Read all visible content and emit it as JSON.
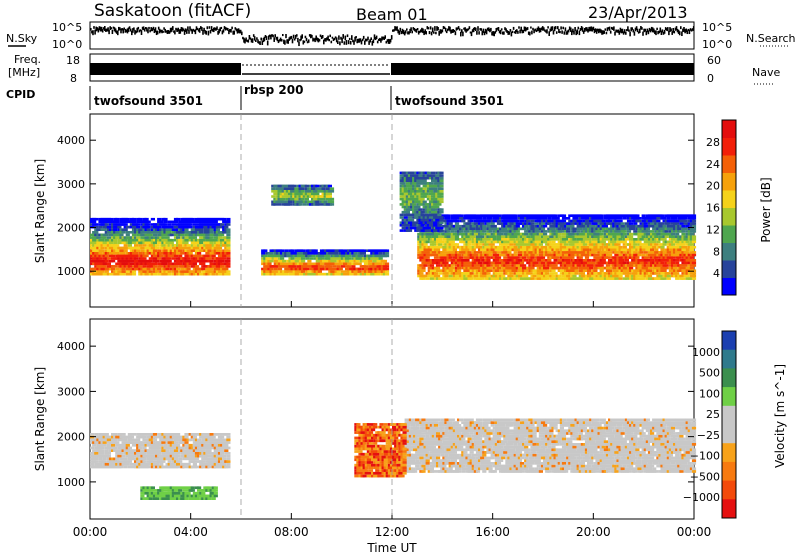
{
  "header": {
    "title": "Saskatoon (fitACF)",
    "beam": "Beam 01",
    "date": "23/Apr/2013"
  },
  "top_panels": {
    "nsky_label": "N.Sky",
    "nsearch_label": "N.Search",
    "nsky_ticks": [
      "10^5",
      "10^0"
    ],
    "nsearch_ticks": [
      "10^5",
      "10^0"
    ],
    "freq_label": "Freq.",
    "freq_unit": "[MHz]",
    "freq_ticks": [
      "18",
      "8"
    ],
    "nave_label": "Nave",
    "nave_ticks": [
      "60",
      "0"
    ],
    "cpid_label": "CPID",
    "cpid_segments": [
      {
        "name": "twofsound 3501",
        "start_h": 0,
        "end_h": 6.0
      },
      {
        "name": "rbsp 200",
        "start_h": 6.0,
        "end_h": 12.0
      },
      {
        "name": "twofsound 3501",
        "start_h": 12.0,
        "end_h": 24.0
      }
    ]
  },
  "chart_data": [
    {
      "type": "heatmap",
      "title": "",
      "xlabel": "Time UT",
      "ylabel": "Slant Range [km]",
      "x_tick_labels": [
        "00:00",
        "04:00",
        "08:00",
        "12:00",
        "16:00",
        "20:00",
        "00:00"
      ],
      "x_ticks_hours": [
        0,
        4,
        8,
        12,
        16,
        20,
        24
      ],
      "xlim_hours": [
        0,
        24
      ],
      "y_tick_labels": [
        "1000",
        "2000",
        "3000",
        "4000"
      ],
      "y_ticks": [
        1000,
        2000,
        3000,
        4000
      ],
      "ylim": [
        180,
        4600
      ],
      "colorbar": {
        "label": "Power [dB]",
        "ticks": [
          "4",
          "8",
          "12",
          "16",
          "20",
          "24",
          "28"
        ],
        "range": [
          0,
          30
        ],
        "colors": [
          "#0000ff",
          "#27439b",
          "#3d7f7f",
          "#4fa64f",
          "#a8c82e",
          "#f5d21a",
          "#f6a10b",
          "#f46007",
          "#f21f09",
          "#e40d0d"
        ]
      },
      "echo_bands": [
        {
          "start_h": 0.0,
          "end_h": 5.5,
          "range_low": 900,
          "range_high": 2200,
          "peak_range": 1200,
          "peak_power": 28
        },
        {
          "start_h": 6.8,
          "end_h": 11.8,
          "range_low": 900,
          "range_high": 1500,
          "peak_range": 1050,
          "peak_power": 26
        },
        {
          "start_h": 13.0,
          "end_h": 24.0,
          "range_low": 800,
          "range_high": 2300,
          "peak_range": 1200,
          "peak_power": 26
        },
        {
          "start_h": 7.2,
          "end_h": 9.6,
          "range_low": 2500,
          "range_high": 3000,
          "peak_range": 2700,
          "peak_power": 14
        },
        {
          "start_h": 12.3,
          "end_h": 14.0,
          "range_low": 1900,
          "range_high": 3300,
          "peak_range": 2700,
          "peak_power": 12
        }
      ]
    },
    {
      "type": "heatmap",
      "title": "",
      "xlabel": "Time UT",
      "ylabel": "Slant Range [km]",
      "x_tick_labels": [
        "00:00",
        "04:00",
        "08:00",
        "12:00",
        "16:00",
        "20:00",
        "00:00"
      ],
      "x_ticks_hours": [
        0,
        4,
        8,
        12,
        16,
        20,
        24
      ],
      "xlim_hours": [
        0,
        24
      ],
      "y_tick_labels": [
        "1000",
        "2000",
        "3000",
        "4000"
      ],
      "y_ticks": [
        1000,
        2000,
        3000,
        4000
      ],
      "ylim": [
        180,
        4600
      ],
      "colorbar": {
        "label": "Velocity [m s^-1]",
        "ticks": [
          "1000",
          "500",
          "100",
          "25",
          "−25",
          "−100",
          "−500",
          "−1000"
        ],
        "colors": [
          "#1b3fb0",
          "#2f7a8c",
          "#3b8f4e",
          "#6fd046",
          "#c8c8c8",
          "#c8c8c8",
          "#f7a21a",
          "#f77a10",
          "#f34a0a",
          "#e51010"
        ]
      },
      "echo_bands": [
        {
          "start_h": 0.0,
          "end_h": 5.5,
          "range_low": 1300,
          "range_high": 2100,
          "dominant": "ground"
        },
        {
          "start_h": 12.5,
          "end_h": 24.0,
          "range_low": 1200,
          "range_high": 2400,
          "dominant": "ground"
        },
        {
          "start_h": 2.0,
          "end_h": 5.0,
          "range_low": 600,
          "range_high": 900,
          "dominant": "positive_low"
        },
        {
          "start_h": 10.5,
          "end_h": 12.5,
          "range_low": 1100,
          "range_high": 2300,
          "dominant": "negative"
        }
      ]
    }
  ]
}
